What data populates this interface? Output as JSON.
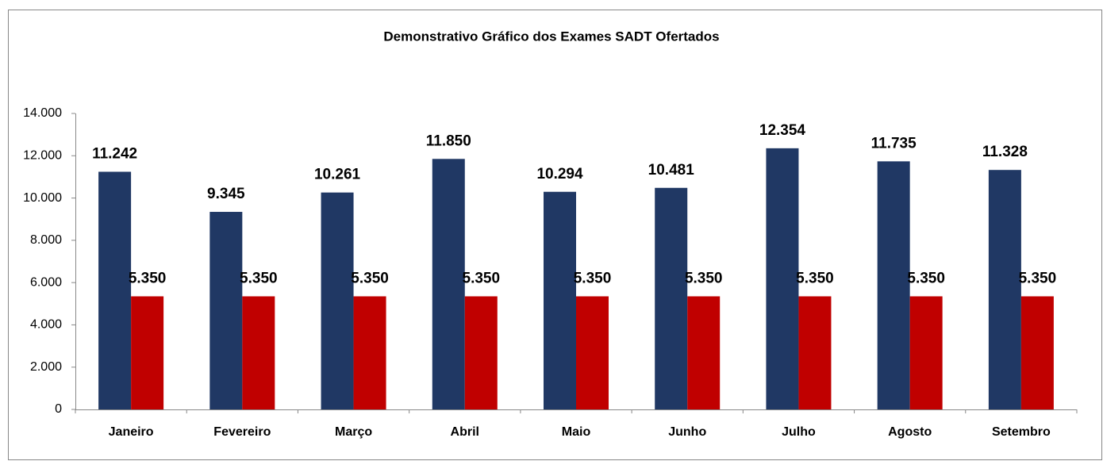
{
  "chart_data": {
    "type": "bar",
    "title": "Demonstrativo Gráfico dos Exames SADT Ofertados",
    "categories": [
      "Janeiro",
      "Fevereiro",
      "Março",
      "Abril",
      "Maio",
      "Junho",
      "Julho",
      "Agosto",
      "Setembro"
    ],
    "series": [
      {
        "color": "#203864",
        "values": [
          11242,
          9345,
          10261,
          11850,
          10294,
          10481,
          12354,
          11735,
          11328
        ],
        "value_labels": [
          "11.242",
          "9.345",
          "10.261",
          "11.850",
          "10.294",
          "10.481",
          "12.354",
          "11.735",
          "11.328"
        ]
      },
      {
        "color": "#c00000",
        "values": [
          5350,
          5350,
          5350,
          5350,
          5350,
          5350,
          5350,
          5350,
          5350
        ],
        "value_labels": [
          "5.350",
          "5.350",
          "5.350",
          "5.350",
          "5.350",
          "5.350",
          "5.350",
          "5.350",
          "5.350"
        ]
      }
    ],
    "ylim": [
      0,
      14000
    ],
    "yticks": [
      0,
      {
        "value": 2000,
        "label": "2.000"
      },
      {
        "value": 4000,
        "label": "4.000"
      },
      {
        "value": 6000,
        "label": "6.000"
      },
      {
        "value": 8000,
        "label": "8.000"
      },
      {
        "value": 10000,
        "label": "10.000"
      },
      {
        "value": 12000,
        "label": "12.000"
      },
      {
        "value": 14000,
        "label": "14.000"
      }
    ],
    "grid": false
  }
}
